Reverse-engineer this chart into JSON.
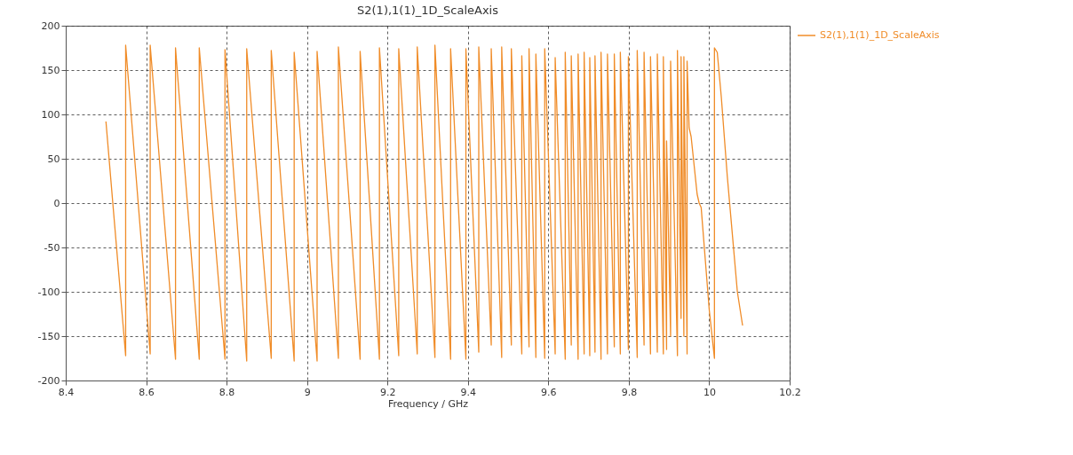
{
  "chart_data": {
    "type": "line",
    "title": "S2(1),1(1)_1D_ScaleAxis",
    "xlabel": "Frequency / GHz",
    "xlim": [
      8.4,
      10.2
    ],
    "xticks": [
      8.4,
      8.6,
      8.8,
      9,
      9.2,
      9.4,
      9.6,
      9.8,
      10,
      10.2
    ],
    "ylim": [
      -200,
      200
    ],
    "yticks": [
      -200,
      -150,
      -100,
      -50,
      0,
      50,
      100,
      150,
      200
    ],
    "grid": true,
    "legend": "top right",
    "line_style": "solid",
    "series": [
      {
        "name": "S2(1),1(1)_1D_ScaleAxis",
        "color": "#f08c28",
        "x": [
          8.5,
          8.549,
          8.549,
          8.61,
          8.61,
          8.673,
          8.673,
          8.732,
          8.732,
          8.796,
          8.796,
          8.85,
          8.85,
          8.911,
          8.911,
          8.968,
          8.968,
          9.025,
          9.025,
          9.078,
          9.078,
          9.132,
          9.132,
          9.18,
          9.18,
          9.228,
          9.228,
          9.274,
          9.274,
          9.318,
          9.318,
          9.357,
          9.357,
          9.395,
          9.395,
          9.427,
          9.427,
          9.458,
          9.458,
          9.484,
          9.484,
          9.508,
          9.508,
          9.534,
          9.534,
          9.552,
          9.552,
          9.569,
          9.569,
          9.591,
          9.591,
          9.617,
          9.617,
          9.642,
          9.642,
          9.657,
          9.657,
          9.674,
          9.674,
          9.689,
          9.689,
          9.703,
          9.703,
          9.716,
          9.716,
          9.731,
          9.731,
          9.747,
          9.747,
          9.764,
          9.764,
          9.779,
          9.779,
          9.799,
          9.799,
          9.821,
          9.821,
          9.838,
          9.838,
          9.854,
          9.854,
          9.871,
          9.871,
          9.886,
          9.886,
          9.894,
          9.894,
          9.904,
          9.904,
          9.921,
          9.921,
          9.93,
          9.93,
          9.937,
          9.937,
          9.945,
          9.945,
          9.95,
          9.955,
          9.97,
          9.975,
          9.98,
          10.0,
          10.013,
          10.013,
          10.02,
          10.03,
          10.045,
          10.07,
          10.083
        ],
        "values": [
          92,
          -172,
          178,
          -170,
          178,
          -176,
          175,
          -176,
          175,
          -176,
          173,
          -178,
          174,
          -175,
          172,
          -178,
          170,
          -178,
          171,
          -175,
          176,
          -176,
          171,
          -176,
          175,
          -172,
          174,
          -170,
          176,
          -174,
          178,
          -176,
          174,
          -176,
          174,
          -168,
          176,
          -160,
          174,
          -174,
          176,
          -160,
          174,
          -170,
          166,
          -162,
          174,
          -174,
          168,
          -175,
          174,
          -170,
          164,
          -176,
          170,
          -160,
          166,
          -176,
          168,
          -170,
          170,
          -172,
          164,
          -168,
          166,
          -176,
          170,
          -170,
          168,
          -162,
          168,
          -170,
          170,
          -165,
          165,
          -174,
          172,
          -160,
          170,
          -170,
          165,
          -168,
          168,
          -170,
          165,
          -165,
          70,
          -150,
          160,
          -172,
          172,
          -130,
          165,
          -150,
          165,
          -170,
          160,
          85,
          75,
          10,
          0,
          -5,
          -120,
          -175,
          175,
          170,
          120,
          30,
          -100,
          -138
        ]
      }
    ]
  }
}
